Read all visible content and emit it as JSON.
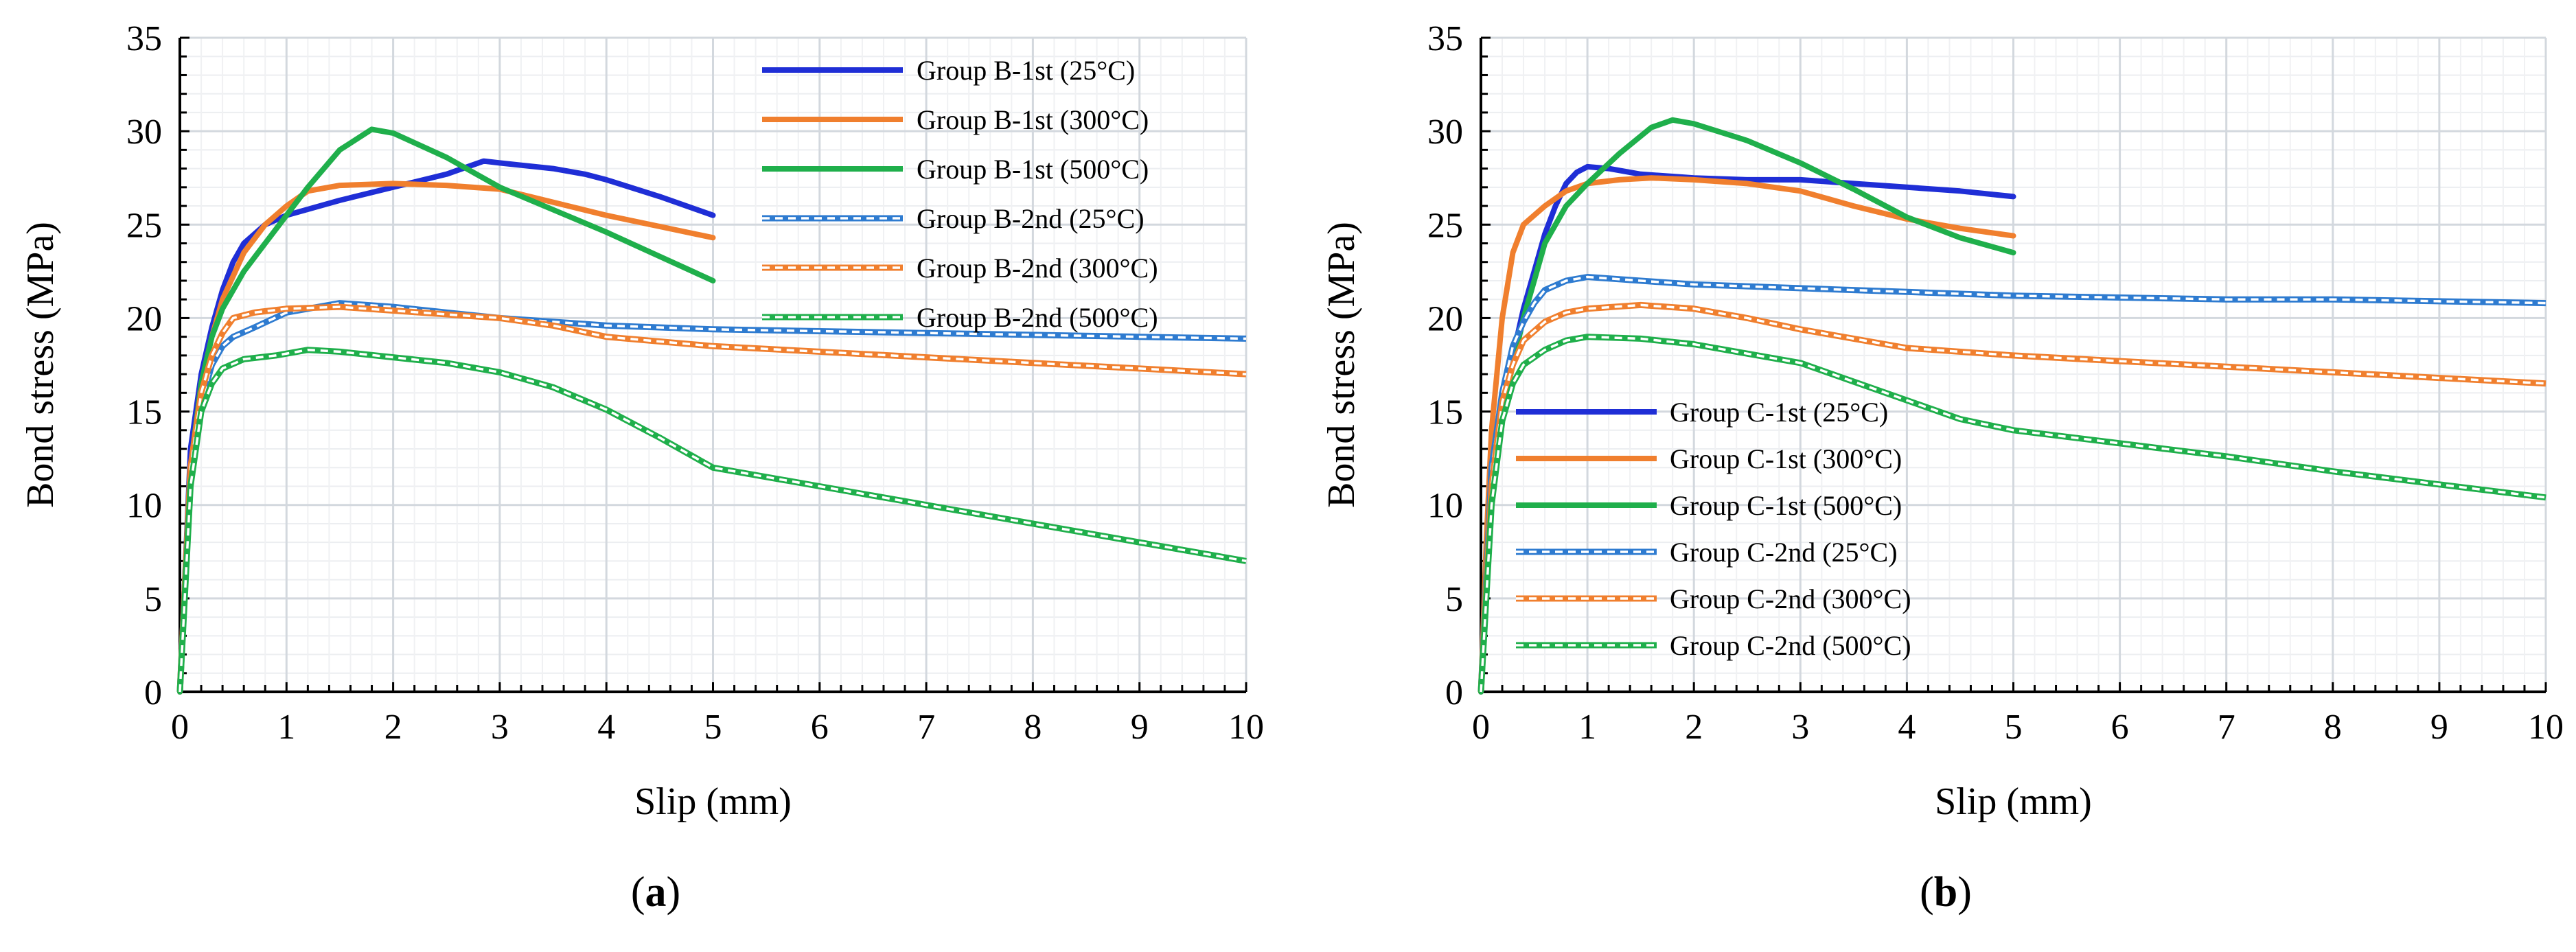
{
  "chart_data": [
    {
      "type": "line",
      "panel_label": "a",
      "xlabel": "Slip (mm)",
      "ylabel": "Bond stress (MPa)",
      "xlim": [
        0,
        10
      ],
      "ylim": [
        0,
        35
      ],
      "x_ticks": [
        0,
        1,
        2,
        3,
        4,
        5,
        6,
        7,
        8,
        9,
        10
      ],
      "y_ticks": [
        0,
        5,
        10,
        15,
        20,
        25,
        30,
        35
      ],
      "grid": true,
      "legend_position": "top-right",
      "series": [
        {
          "name": "Group B-1st (25°C)",
          "color": "#1f2ed6",
          "style": "solid",
          "x": [
            0,
            0.1,
            0.2,
            0.3,
            0.4,
            0.5,
            0.6,
            0.8,
            1.0,
            1.5,
            2.0,
            2.5,
            2.85,
            3.0,
            3.5,
            3.8,
            4.0,
            4.5,
            5.0
          ],
          "y": [
            0,
            13,
            17,
            19.5,
            21.5,
            23,
            24,
            25,
            25.5,
            26.3,
            27,
            27.7,
            28.4,
            28.3,
            28,
            27.7,
            27.4,
            26.5,
            25.5
          ]
        },
        {
          "name": "Group B-1st (300°C)",
          "color": "#f07f2e",
          "style": "solid",
          "x": [
            0,
            0.1,
            0.2,
            0.3,
            0.4,
            0.6,
            0.8,
            1.0,
            1.2,
            1.5,
            2.0,
            2.5,
            3.0,
            3.5,
            4.0,
            4.5,
            5.0
          ],
          "y": [
            0,
            12,
            16.5,
            19,
            21,
            23.5,
            25,
            26,
            26.8,
            27.1,
            27.2,
            27.1,
            26.9,
            26.2,
            25.5,
            24.9,
            24.3
          ]
        },
        {
          "name": "Group B-1st (500°C)",
          "color": "#1faf4b",
          "style": "solid",
          "x": [
            0,
            0.1,
            0.2,
            0.3,
            0.4,
            0.6,
            0.8,
            1.0,
            1.2,
            1.5,
            1.8,
            2.0,
            2.5,
            3.0,
            3.5,
            4.0,
            4.5,
            5.0
          ],
          "y": [
            0,
            12,
            16.5,
            19,
            20.5,
            22.5,
            24,
            25.5,
            27,
            29,
            30.1,
            29.9,
            28.6,
            27,
            25.8,
            24.6,
            23.3,
            22
          ]
        },
        {
          "name": "Group B-2nd (25°C)",
          "color": "#2e7bd0",
          "style": "dashed",
          "x": [
            0,
            0.1,
            0.2,
            0.3,
            0.4,
            0.5,
            0.7,
            1.0,
            1.5,
            2.0,
            2.5,
            3.0,
            4.0,
            5.0,
            6.0,
            7.0,
            8.0,
            9.0,
            10.0
          ],
          "y": [
            0,
            12,
            15.5,
            17.5,
            18.5,
            19,
            19.5,
            20.3,
            20.8,
            20.6,
            20.3,
            20,
            19.6,
            19.4,
            19.3,
            19.2,
            19.1,
            19,
            18.9
          ]
        },
        {
          "name": "Group B-2nd (300°C)",
          "color": "#f07f2e",
          "style": "dashed",
          "x": [
            0,
            0.1,
            0.2,
            0.3,
            0.4,
            0.5,
            0.7,
            1.0,
            1.5,
            2.0,
            2.5,
            3.0,
            3.5,
            4.0,
            5.0,
            6.0,
            7.0,
            8.0,
            9.0,
            10.0
          ],
          "y": [
            0,
            12,
            16,
            18,
            19.2,
            20,
            20.3,
            20.5,
            20.6,
            20.4,
            20.2,
            20,
            19.6,
            19,
            18.5,
            18.2,
            17.9,
            17.6,
            17.3,
            17
          ]
        },
        {
          "name": "Group B-2nd (500°C)",
          "color": "#1faf4b",
          "style": "dashed",
          "x": [
            0,
            0.1,
            0.2,
            0.3,
            0.4,
            0.6,
            0.9,
            1.2,
            1.5,
            2.0,
            2.5,
            3.0,
            3.5,
            4.0,
            4.5,
            5.0,
            6.0,
            7.0,
            8.0,
            9.0,
            10.0
          ],
          "y": [
            0,
            11,
            15,
            16.5,
            17.3,
            17.8,
            18,
            18.3,
            18.2,
            17.9,
            17.6,
            17.1,
            16.3,
            15.1,
            13.6,
            12,
            11,
            10,
            9,
            8,
            7
          ]
        }
      ]
    },
    {
      "type": "line",
      "panel_label": "b",
      "xlabel": "Slip (mm)",
      "ylabel": "Bond stress (MPa)",
      "xlim": [
        0,
        10
      ],
      "ylim": [
        0,
        35
      ],
      "x_ticks": [
        0,
        1,
        2,
        3,
        4,
        5,
        6,
        7,
        8,
        9,
        10
      ],
      "y_ticks": [
        0,
        5,
        10,
        15,
        20,
        25,
        30,
        35
      ],
      "grid": true,
      "legend_position": "center-left",
      "series": [
        {
          "name": "Group C-1st (25°C)",
          "color": "#1f2ed6",
          "style": "solid",
          "x": [
            0,
            0.1,
            0.2,
            0.3,
            0.4,
            0.5,
            0.6,
            0.7,
            0.8,
            0.9,
            1.0,
            1.2,
            1.5,
            2.0,
            2.5,
            3.0,
            3.5,
            4.0,
            4.5,
            5.0
          ],
          "y": [
            0,
            10,
            15,
            18,
            20.5,
            22.5,
            24.5,
            26,
            27.2,
            27.8,
            28.1,
            28,
            27.7,
            27.5,
            27.4,
            27.4,
            27.2,
            27,
            26.8,
            26.5
          ]
        },
        {
          "name": "Group C-1st (300°C)",
          "color": "#f07f2e",
          "style": "solid",
          "x": [
            0,
            0.05,
            0.1,
            0.2,
            0.3,
            0.4,
            0.6,
            0.8,
            1.0,
            1.3,
            1.6,
            2.0,
            2.5,
            3.0,
            3.5,
            4.0,
            4.5,
            5.0
          ],
          "y": [
            0,
            8,
            14,
            20,
            23.5,
            25,
            26,
            26.8,
            27.2,
            27.4,
            27.5,
            27.4,
            27.2,
            26.8,
            26,
            25.3,
            24.8,
            24.4
          ]
        },
        {
          "name": "Group C-1st (500°C)",
          "color": "#1faf4b",
          "style": "solid",
          "x": [
            0,
            0.1,
            0.2,
            0.3,
            0.4,
            0.5,
            0.6,
            0.8,
            1.0,
            1.3,
            1.6,
            1.8,
            2.0,
            2.5,
            3.0,
            3.5,
            4.0,
            4.5,
            5.0
          ],
          "y": [
            0,
            10,
            15,
            17.5,
            20,
            22,
            24,
            26,
            27.2,
            28.8,
            30.2,
            30.6,
            30.4,
            29.5,
            28.3,
            26.9,
            25.4,
            24.3,
            23.5
          ]
        },
        {
          "name": "Group C-2nd (25°C)",
          "color": "#2e7bd0",
          "style": "dashed",
          "x": [
            0,
            0.1,
            0.2,
            0.3,
            0.4,
            0.5,
            0.6,
            0.8,
            1.0,
            1.5,
            2.0,
            3.0,
            4.0,
            5.0,
            6.0,
            7.0,
            8.0,
            9.0,
            10.0
          ],
          "y": [
            0,
            12,
            16,
            18.5,
            19.8,
            20.8,
            21.5,
            22,
            22.2,
            22,
            21.8,
            21.6,
            21.4,
            21.2,
            21.1,
            21,
            21,
            20.9,
            20.8
          ]
        },
        {
          "name": "Group C-2nd (300°C)",
          "color": "#f07f2e",
          "style": "dashed",
          "x": [
            0,
            0.1,
            0.2,
            0.3,
            0.4,
            0.6,
            0.8,
            1.0,
            1.5,
            2.0,
            2.5,
            3.0,
            3.5,
            4.0,
            5.0,
            6.0,
            7.0,
            8.0,
            9.0,
            10.0
          ],
          "y": [
            0,
            11,
            15.5,
            17.5,
            18.8,
            19.8,
            20.3,
            20.5,
            20.7,
            20.5,
            20,
            19.4,
            18.9,
            18.4,
            18,
            17.7,
            17.4,
            17.1,
            16.8,
            16.5
          ]
        },
        {
          "name": "Group C-2nd (500°C)",
          "color": "#1faf4b",
          "style": "dashed",
          "x": [
            0,
            0.1,
            0.2,
            0.3,
            0.4,
            0.6,
            0.8,
            1.0,
            1.5,
            2.0,
            2.5,
            3.0,
            3.5,
            4.0,
            4.5,
            5.0,
            6.0,
            7.0,
            8.0,
            9.0,
            10.0
          ],
          "y": [
            0,
            10,
            14.5,
            16.5,
            17.5,
            18.3,
            18.8,
            19,
            18.9,
            18.6,
            18.1,
            17.6,
            16.6,
            15.6,
            14.6,
            14,
            13.3,
            12.6,
            11.8,
            11.1,
            10.4
          ]
        }
      ]
    }
  ]
}
